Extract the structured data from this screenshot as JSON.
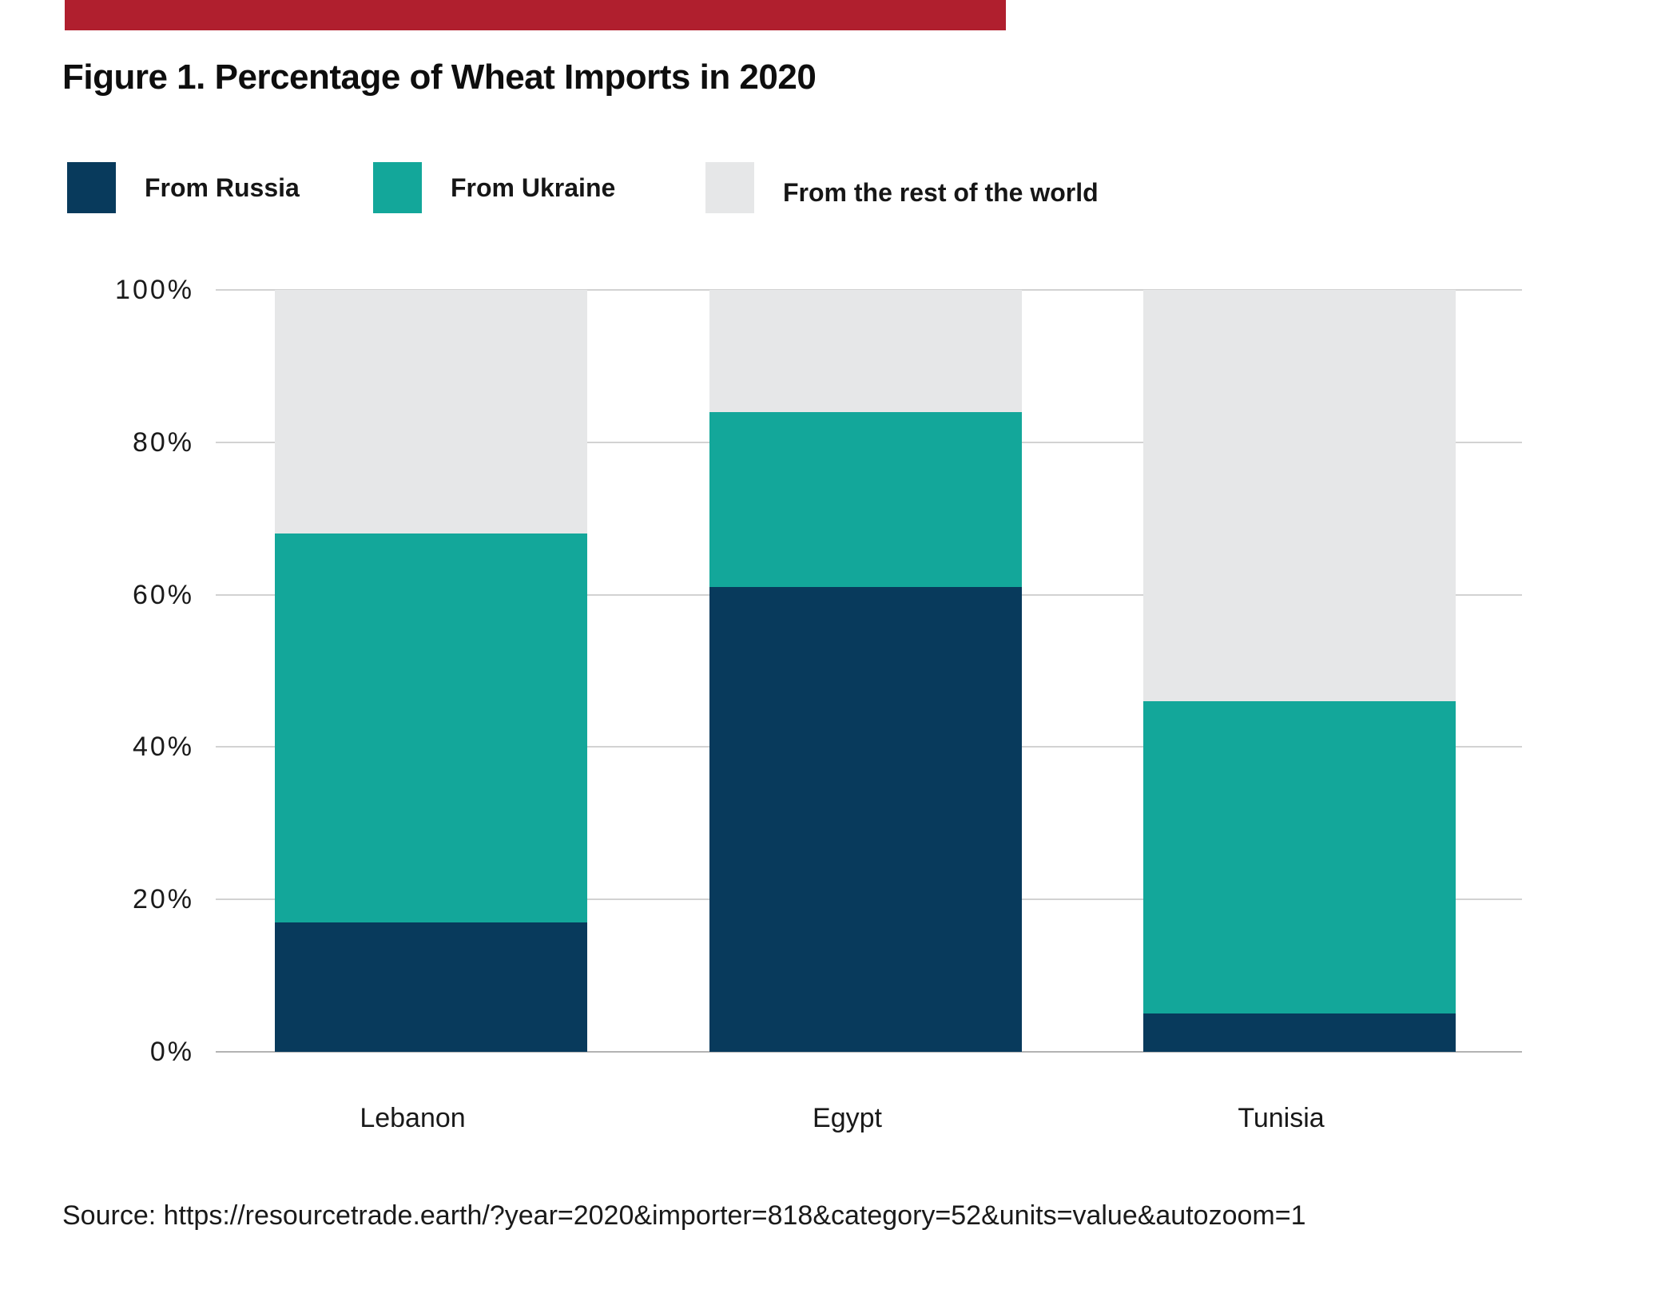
{
  "title": "Figure 1. Percentage of Wheat Imports in 2020",
  "source": "Source: https://resourcetrade.earth/?year=2020&importer=818&category=52&units=value&autozoom=1",
  "colors": {
    "accent_bar": "#B01F2E",
    "russia": "#083A5C",
    "ukraine": "#13A79A",
    "rest_of_world": "#E6E7E8",
    "gridline": "#D2D2D2",
    "axis_line": "#B3B3B3",
    "text": "#1A1A1A"
  },
  "legend": [
    {
      "label": "From Russia",
      "color": "#083A5C"
    },
    {
      "label": "From Ukraine",
      "color": "#13A79A"
    },
    {
      "label": "From the rest of the world",
      "color": "#E6E7E8"
    }
  ],
  "chart_data": {
    "type": "bar",
    "stacked": true,
    "title": "Figure 1. Percentage of Wheat Imports in 2020",
    "categories": [
      "Lebanon",
      "Egypt",
      "Tunisia"
    ],
    "series": [
      {
        "name": "From Russia",
        "key": "russia",
        "color": "#083A5C",
        "values": [
          17,
          61,
          5
        ]
      },
      {
        "name": "From Ukraine",
        "key": "ukraine",
        "color": "#13A79A",
        "values": [
          51,
          23,
          41
        ]
      },
      {
        "name": "From the rest of the world",
        "key": "rest-of-world",
        "color": "#E6E7E8",
        "values": [
          32,
          16,
          54
        ]
      }
    ],
    "xlabel": "",
    "ylabel": "",
    "ylim": [
      0,
      100
    ],
    "yticks": [
      "0%",
      "20%",
      "40%",
      "60%",
      "80%",
      "100%"
    ],
    "grid": true,
    "legend_position": "top"
  }
}
